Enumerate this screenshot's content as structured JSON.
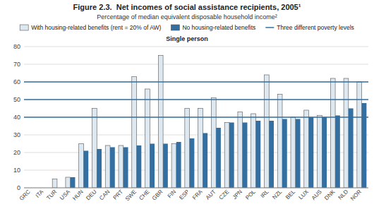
{
  "chart_data": {
    "type": "bar",
    "title": "Figure 2.3.  Net incomes of social assistance recipients, 2005¹",
    "subtitle": "Percentage of median equivalent disposable household income²",
    "annotations": [
      "Single person"
    ],
    "categories": [
      "GRC",
      "ITA",
      "TUR",
      "USA",
      "HUN",
      "DEU",
      "CAN",
      "PRT",
      "SWE",
      "CHE",
      "GBR",
      "FIN",
      "ESP",
      "FRA",
      "AUT",
      "CZE",
      "JPN",
      "POL",
      "IRL",
      "NZL",
      "BEL",
      "LUX",
      "AUS",
      "DNK",
      "NLD",
      "NOR"
    ],
    "series": [
      {
        "name": "With housing-related benefits (rent = 20% of AW)",
        "color": "#dde8f0",
        "values": [
          0,
          0,
          5,
          6,
          25,
          45,
          24,
          24,
          63,
          56,
          75,
          25,
          45,
          45,
          51,
          37,
          43,
          42,
          64,
          53,
          40,
          44,
          41,
          62,
          62,
          60
        ]
      },
      {
        "name": "No housing-related benefits",
        "color": "#336FA0",
        "values": [
          0,
          0,
          0,
          6,
          21,
          22,
          23,
          23,
          24,
          25,
          25,
          26,
          28,
          31,
          34,
          37,
          37,
          38,
          38,
          39,
          39,
          40,
          40,
          41,
          45,
          48
        ]
      }
    ],
    "reference_lines": {
      "name": "Three different poverty levels",
      "color": "#336FA0",
      "values": [
        40,
        50,
        60
      ]
    },
    "ylim": [
      0,
      80
    ],
    "yticks": [
      0,
      10,
      20,
      30,
      40,
      50,
      60,
      70,
      80
    ],
    "grid": true,
    "legend": "top"
  }
}
